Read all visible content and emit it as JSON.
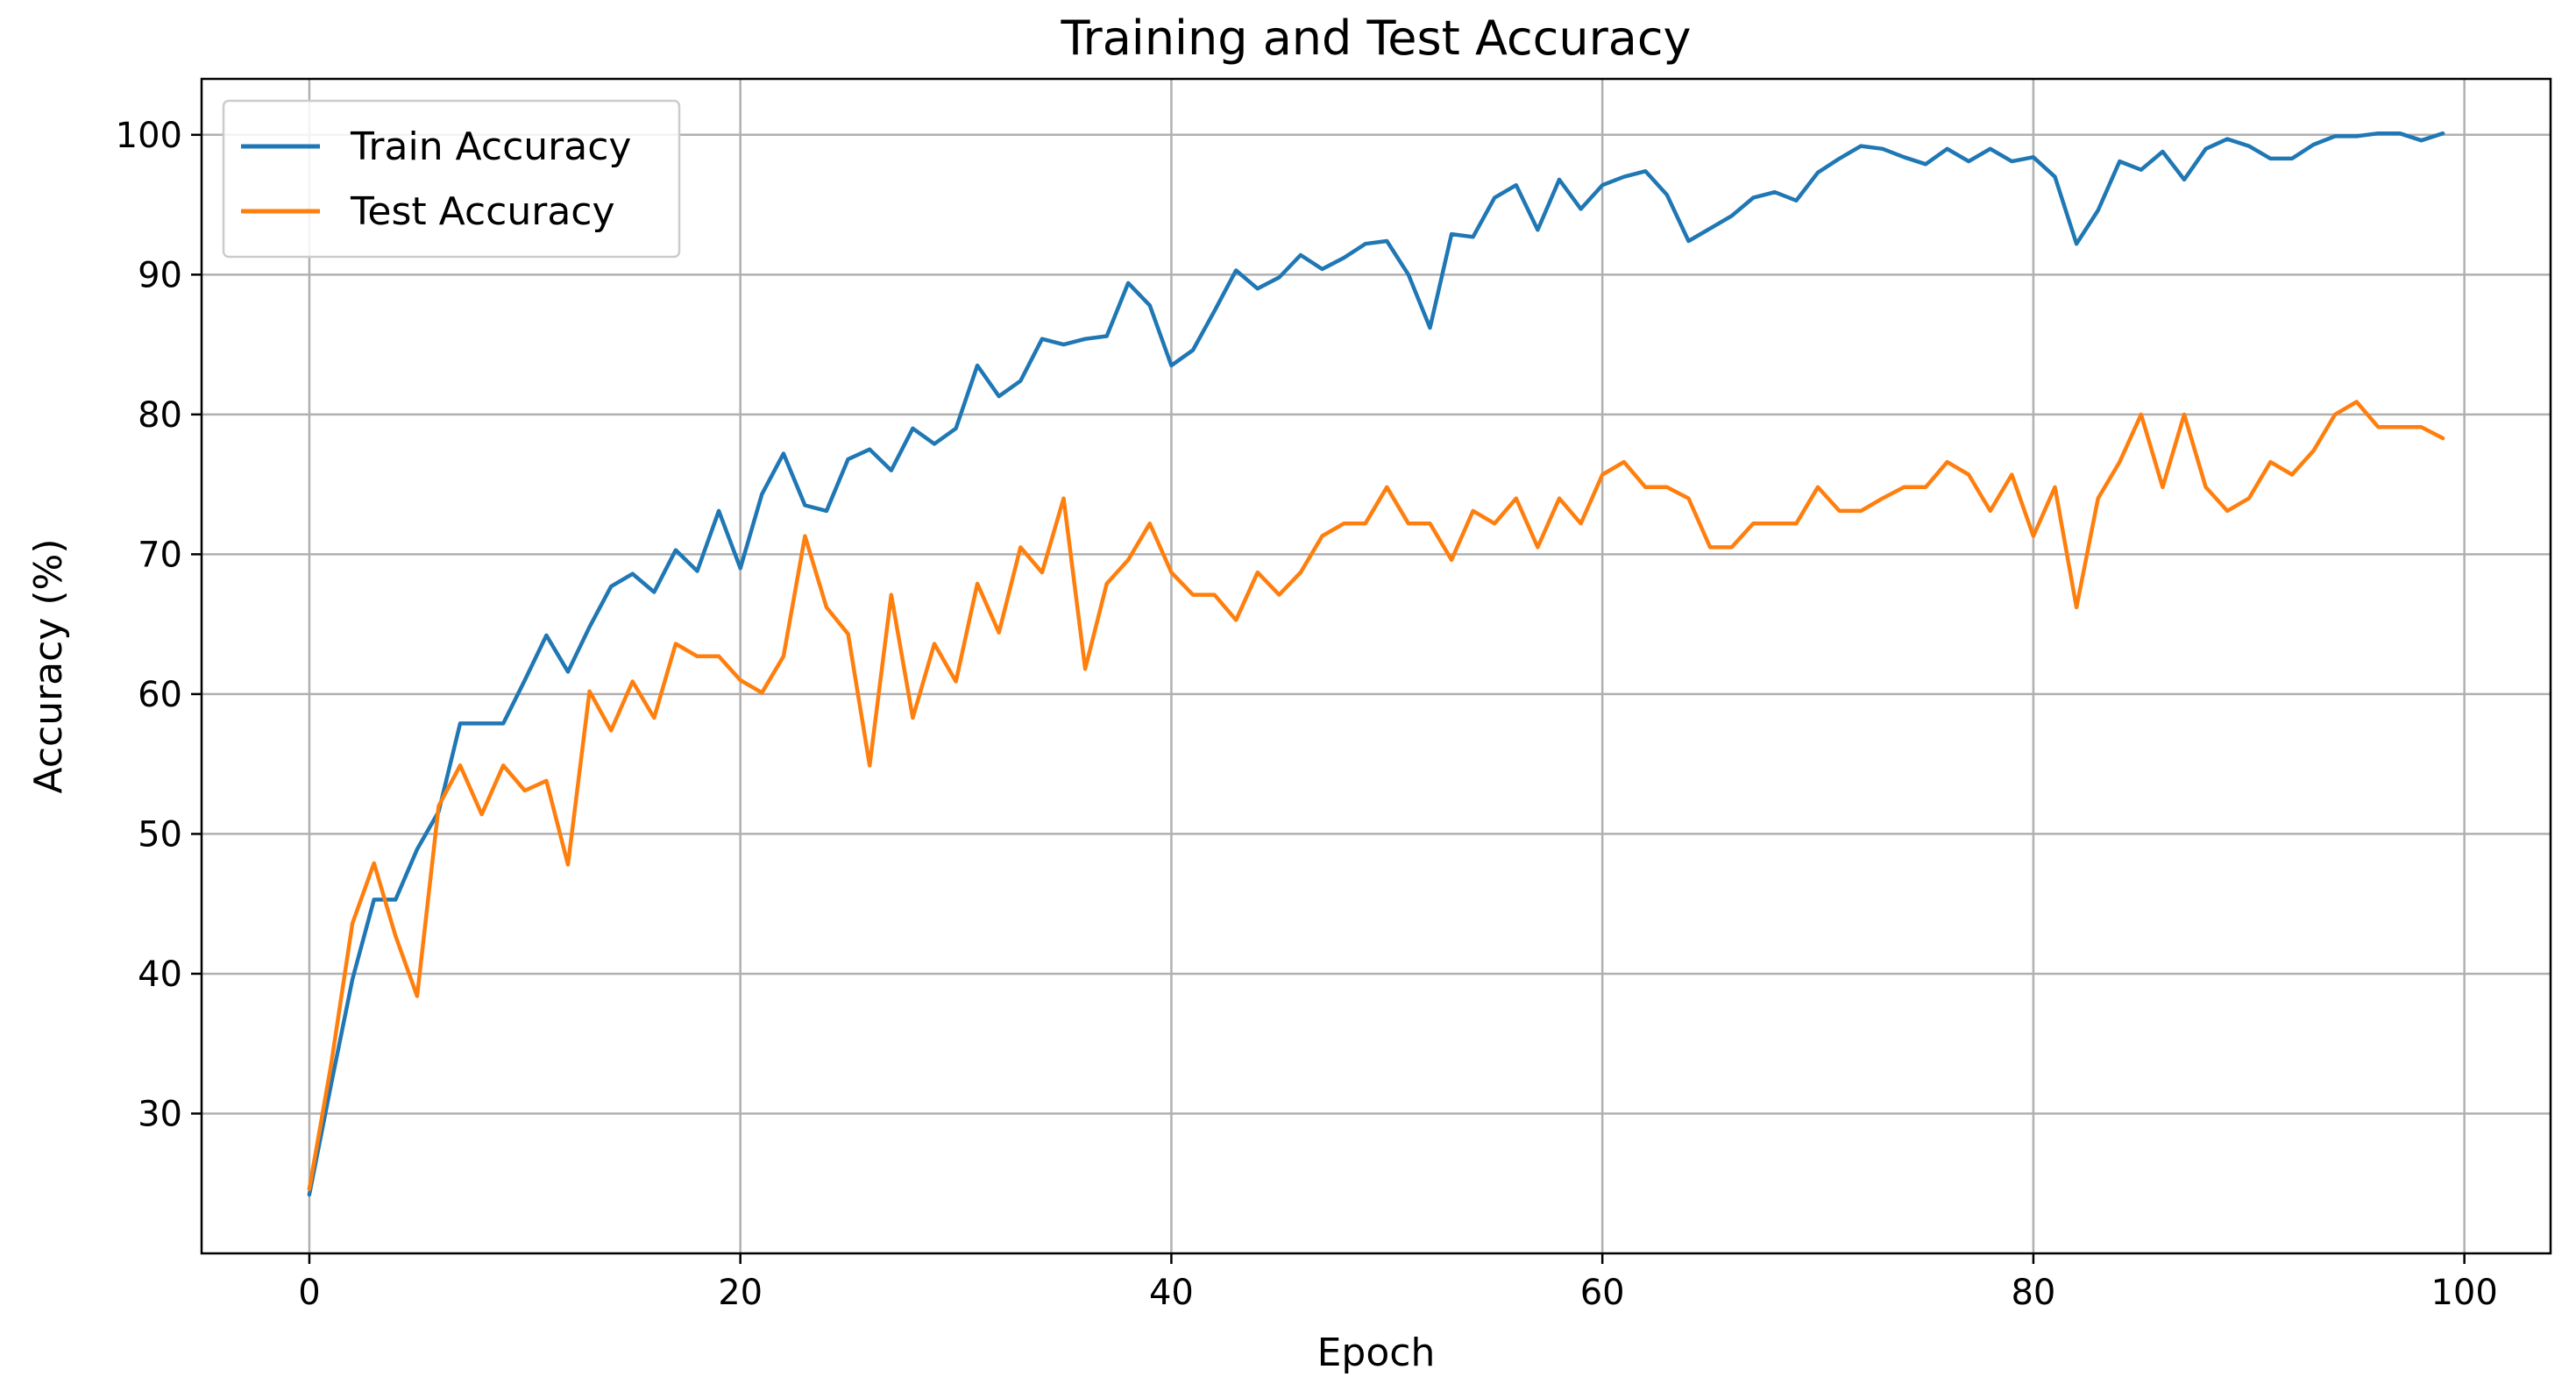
{
  "chart_data": {
    "type": "line",
    "title": "Training and Test Accuracy",
    "xlabel": "Epoch",
    "ylabel": "Accuracy (%)",
    "xlim": [
      -5,
      104
    ],
    "ylim": [
      20,
      104
    ],
    "xticks": [
      0,
      20,
      40,
      60,
      80,
      100
    ],
    "yticks": [
      30,
      40,
      50,
      60,
      70,
      80,
      90,
      100
    ],
    "grid": true,
    "legend_position": "top-left",
    "series": [
      {
        "name": "Train Accuracy",
        "color": "#1f77b4",
        "x": [
          0,
          1,
          2,
          3,
          4,
          5,
          6,
          7,
          8,
          9,
          10,
          11,
          12,
          13,
          14,
          15,
          16,
          17,
          18,
          19,
          20,
          21,
          22,
          23,
          24,
          25,
          26,
          27,
          28,
          29,
          30,
          31,
          32,
          33,
          34,
          35,
          36,
          37,
          38,
          39,
          40,
          41,
          42,
          43,
          44,
          45,
          46,
          47,
          48,
          49,
          50,
          51,
          52,
          53,
          54,
          55,
          56,
          57,
          58,
          59,
          60,
          61,
          62,
          63,
          64,
          65,
          66,
          67,
          68,
          69,
          70,
          71,
          72,
          73,
          74,
          75,
          76,
          77,
          78,
          79,
          80,
          81,
          82,
          83,
          84,
          85,
          86,
          87,
          88,
          89,
          90,
          91,
          92,
          93,
          94,
          95,
          96,
          97,
          98,
          99
        ],
        "values": [
          24.2,
          32.0,
          39.6,
          45.3,
          45.3,
          48.9,
          51.6,
          57.9,
          57.9,
          57.9,
          61.0,
          64.2,
          61.6,
          64.8,
          67.7,
          68.6,
          67.3,
          70.3,
          68.8,
          73.1,
          69.0,
          74.3,
          77.2,
          73.5,
          73.1,
          76.8,
          77.5,
          76.0,
          79.0,
          77.9,
          79.0,
          83.5,
          81.3,
          82.4,
          85.4,
          85.0,
          85.4,
          85.6,
          89.4,
          87.8,
          83.5,
          84.6,
          87.4,
          90.3,
          89.0,
          89.8,
          91.4,
          90.4,
          91.2,
          92.2,
          92.4,
          90.0,
          86.2,
          92.9,
          92.7,
          95.5,
          96.4,
          93.2,
          96.8,
          94.7,
          96.4,
          97.0,
          97.4,
          95.7,
          92.4,
          93.3,
          94.2,
          95.5,
          95.9,
          95.3,
          97.3,
          98.3,
          99.2,
          99.0,
          98.4,
          97.9,
          99.0,
          98.1,
          99.0,
          98.1,
          98.4,
          97.0,
          92.2,
          94.6,
          98.1,
          97.5,
          98.8,
          96.8,
          99.0,
          99.7,
          99.2,
          98.3,
          98.3,
          99.3,
          99.9,
          99.9,
          100.1,
          100.1,
          99.6,
          100.1
        ]
      },
      {
        "name": "Test Accuracy",
        "color": "#ff7f0e",
        "x": [
          0,
          1,
          2,
          3,
          4,
          5,
          6,
          7,
          8,
          9,
          10,
          11,
          12,
          13,
          14,
          15,
          16,
          17,
          18,
          19,
          20,
          21,
          22,
          23,
          24,
          25,
          26,
          27,
          28,
          29,
          30,
          31,
          32,
          33,
          34,
          35,
          36,
          37,
          38,
          39,
          40,
          41,
          42,
          43,
          44,
          45,
          46,
          47,
          48,
          49,
          50,
          51,
          52,
          53,
          54,
          55,
          56,
          57,
          58,
          59,
          60,
          61,
          62,
          63,
          64,
          65,
          66,
          67,
          68,
          69,
          70,
          71,
          72,
          73,
          74,
          75,
          76,
          77,
          78,
          79,
          80,
          81,
          82,
          83,
          84,
          85,
          86,
          87,
          88,
          89,
          90,
          91,
          92,
          93,
          94,
          95,
          96,
          97,
          98,
          99
        ],
        "values": [
          24.6,
          33.4,
          43.6,
          47.9,
          42.7,
          38.4,
          52.0,
          54.9,
          51.4,
          54.9,
          53.1,
          53.8,
          47.8,
          60.2,
          57.4,
          60.9,
          58.3,
          63.6,
          62.7,
          62.7,
          61.0,
          60.1,
          62.7,
          71.3,
          66.2,
          64.3,
          54.9,
          67.1,
          58.3,
          63.6,
          60.9,
          67.9,
          64.4,
          70.5,
          68.7,
          74.0,
          61.8,
          67.9,
          69.6,
          72.2,
          68.7,
          67.1,
          67.1,
          65.3,
          68.7,
          67.1,
          68.7,
          71.3,
          72.2,
          72.2,
          74.8,
          72.2,
          72.2,
          69.6,
          73.1,
          72.2,
          74.0,
          70.5,
          74.0,
          72.2,
          75.7,
          76.6,
          74.8,
          74.8,
          74.0,
          70.5,
          70.5,
          72.2,
          72.2,
          72.2,
          74.8,
          73.1,
          73.1,
          74.0,
          74.8,
          74.8,
          76.6,
          75.7,
          73.1,
          75.7,
          71.3,
          74.8,
          66.2,
          74.0,
          76.6,
          80.0,
          74.8,
          80.0,
          74.8,
          73.1,
          74.0,
          76.6,
          75.7,
          77.4,
          80.0,
          80.9,
          79.1,
          79.1,
          79.1,
          78.3
        ]
      }
    ]
  }
}
